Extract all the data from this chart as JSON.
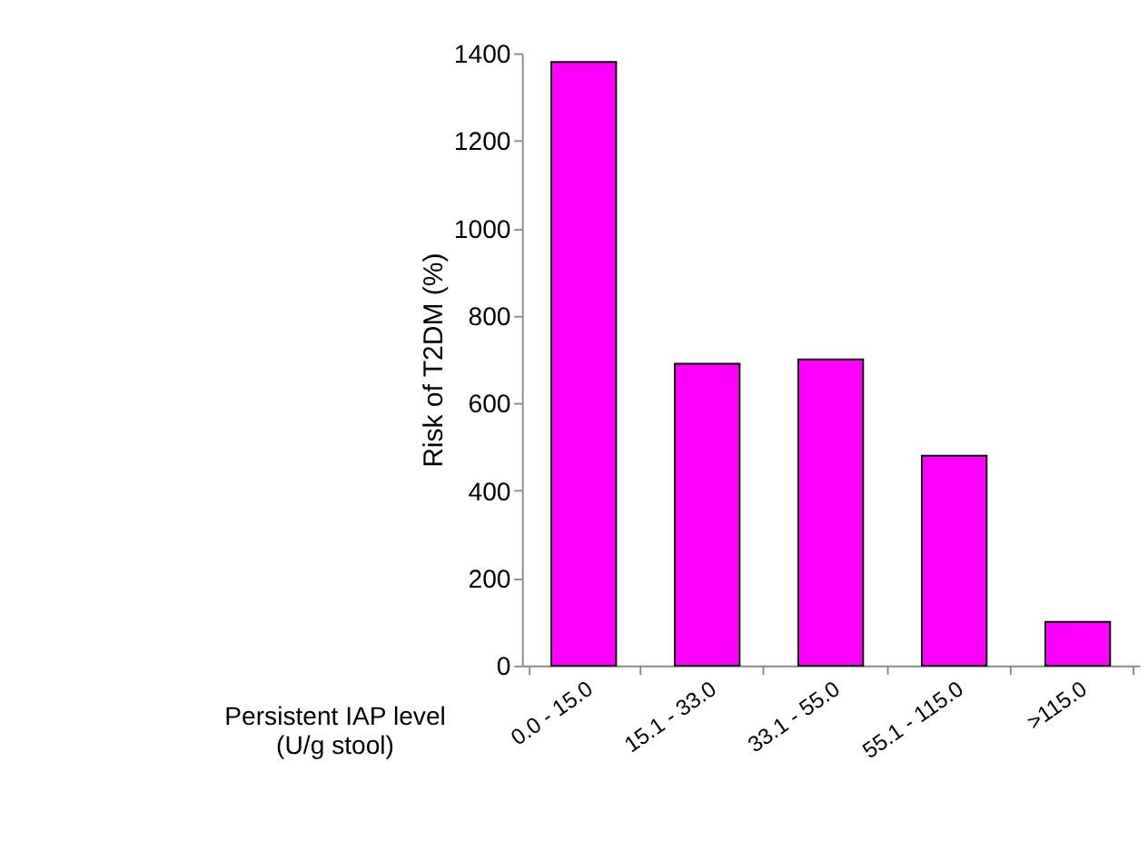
{
  "chart_data": {
    "type": "bar",
    "xlabel": "Persistent IAP level\n(U/g stool)",
    "ylabel": "Risk of T2DM (%)",
    "categories": [
      "0.0 - 15.0",
      "15.1 - 33.0",
      "33.1 - 55.0",
      "55.1 - 115.0",
      ">115.0"
    ],
    "values": [
      1380,
      690,
      700,
      480,
      100
    ],
    "color": "#ff00ff",
    "ylim": [
      0,
      1400
    ],
    "yticks": [
      0,
      200,
      400,
      600,
      800,
      1000,
      1200,
      1400
    ],
    "grid": false
  }
}
